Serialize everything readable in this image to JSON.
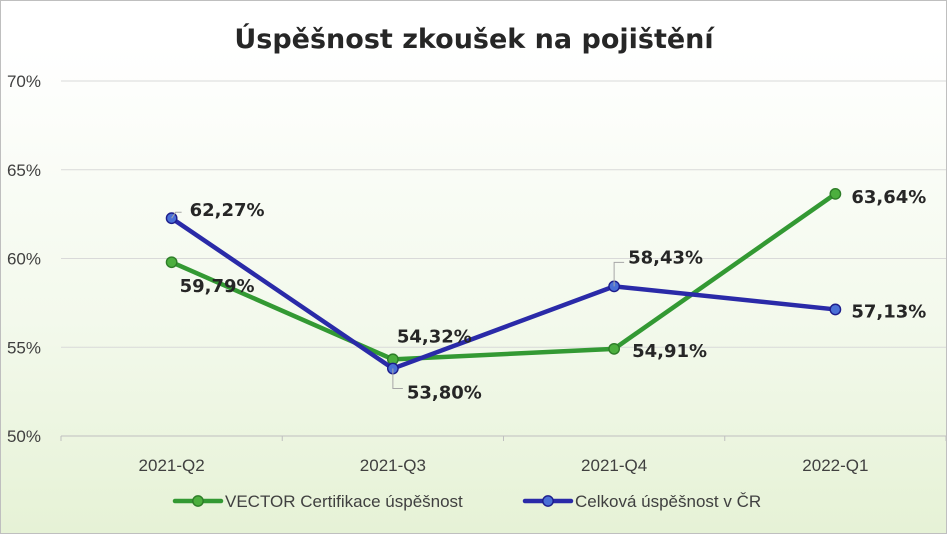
{
  "chart_data": {
    "type": "line",
    "title": "Úspěšnost zkoušek na pojištění",
    "xlabel": "",
    "ylabel": "",
    "categories": [
      "2021-Q2",
      "2021-Q3",
      "2021-Q4",
      "2022-Q1"
    ],
    "ylim": [
      50,
      70
    ],
    "yticks": [
      50,
      55,
      60,
      65,
      70
    ],
    "ytick_labels": [
      "50%",
      "55%",
      "60%",
      "65%",
      "70%"
    ],
    "grid": true,
    "legend_position": "bottom",
    "series": [
      {
        "name": "VECTOR Certifikace úspěšnost",
        "values": [
          59.79,
          54.32,
          54.91,
          63.64
        ],
        "labels": [
          "59,79%",
          "54,32%",
          "54,91%",
          "63,64%"
        ],
        "color": "#339933"
      },
      {
        "name": "Celková úspěšnost v ČR",
        "values": [
          62.27,
          53.8,
          58.43,
          57.13
        ],
        "labels": [
          "62,27%",
          "53,80%",
          "58,43%",
          "57,13%"
        ],
        "color": "#2a2aa8"
      }
    ]
  }
}
